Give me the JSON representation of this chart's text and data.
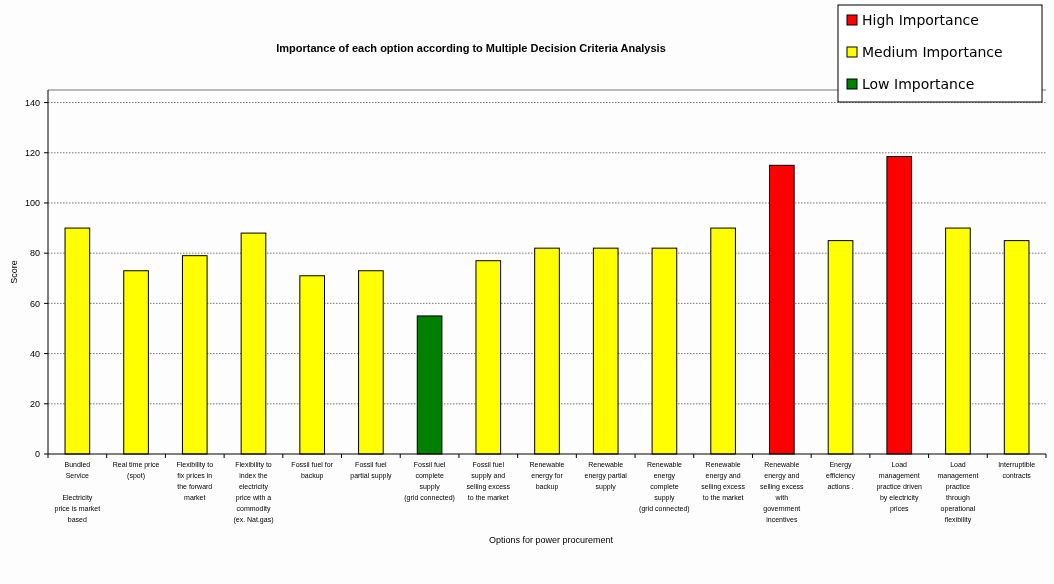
{
  "chart_data": {
    "type": "bar",
    "title": "Importance of each option according to Multiple Decision Criteria Analysis",
    "xlabel": "Options for power procurement",
    "ylabel": "Score",
    "categories": [
      "Bundled\nService\n\nElectricity\nprice is market\nbased",
      "Real time price\n(spot)",
      "Flexibility to\nfix prices in\nthe forward\nmarket",
      "Flexibility to\nindex the\nelectricity\nprice with a\ncommodity\n(ex. Nat.gas)",
      "Fossil fuel for\nbackup",
      "Fossil fuel\npartial supply",
      "Fossil fuel\ncomplete\nsupply\n(grid connected)",
      "Fossil fuel\nsupply and\nselling excess\nto the market",
      "Renewable\nenergy for\nbackup",
      "Renewable\nenergy partial\nsupply",
      "Renewable\nenergy\ncomplete\nsupply\n(grid connected)",
      "Renewable\nenergy and\nselling excess\nto the market",
      "Renewable\nenergy and\nselling excess\nwith\ngovernment\nincentives",
      "Energy\nefficiency\nactions .",
      "Load\nmanagement\npractice driven\nby electricity\nprices",
      "Load\nmanagement\npractice\nthrough\noperational\nflexibility",
      "Interruptible\ncontracts"
    ],
    "stacked": true,
    "series": [
      {
        "name": "High Importance",
        "color": "#ff0000",
        "values": [
          null,
          null,
          null,
          null,
          null,
          null,
          null,
          null,
          null,
          null,
          null,
          null,
          115,
          null,
          118.5,
          null,
          null
        ]
      },
      {
        "name": "Medium Importance",
        "color": "#ffff00",
        "values": [
          90,
          73,
          79,
          88,
          71,
          73,
          null,
          77,
          82,
          82,
          82,
          90,
          null,
          85,
          null,
          90,
          85
        ]
      },
      {
        "name": "Low Importance",
        "color": "#008000",
        "values": [
          null,
          null,
          null,
          null,
          null,
          null,
          55,
          null,
          null,
          null,
          null,
          null,
          null,
          null,
          null,
          null,
          null
        ]
      }
    ],
    "ylim": [
      0,
      145
    ],
    "yticks": [
      0,
      20,
      40,
      60,
      80,
      100,
      120,
      140
    ],
    "grid": "y",
    "legend": "top right"
  }
}
